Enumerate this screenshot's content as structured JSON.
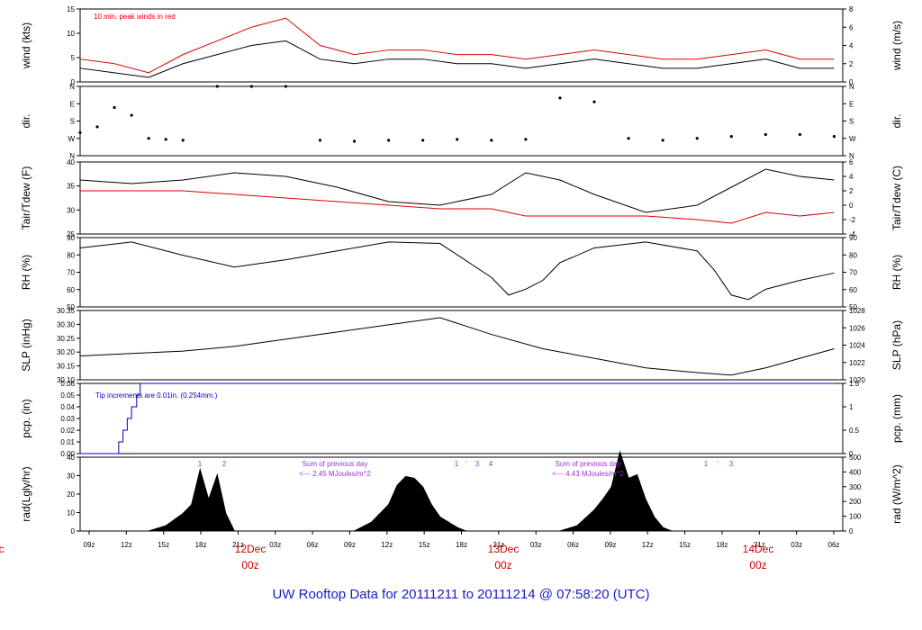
{
  "title": "UW Rooftop Data for 20111211  to  20111214 @ 07:58:20  (UTC)",
  "colors": {
    "series": "#000000",
    "accent": "#dd0000",
    "precip": "#0000cc",
    "annotation": "#9933cc",
    "title": "#1a1acc"
  },
  "x_ticks": [
    "09z",
    "12z",
    "15z",
    "18z",
    "21z",
    "03z",
    "06z",
    "09z",
    "12z",
    "15z",
    "18z",
    "21z",
    "03z",
    "06z",
    "09z",
    "12z",
    "15z",
    "18z",
    "21z",
    "03z",
    "06z"
  ],
  "day_labels": [
    {
      "date": "Dec",
      "hour": "z"
    },
    {
      "date": "12Dec",
      "hour": "00z"
    },
    {
      "date": "13Dec",
      "hour": "00z"
    },
    {
      "date": "14Dec",
      "hour": "00z"
    }
  ],
  "chart_data": [
    {
      "type": "line",
      "id": "wind",
      "ylabel_left": "wind (kts)",
      "ylabel_right": "wind (m/s)",
      "ylim": [
        0,
        16
      ],
      "yticks_left": [
        "0",
        "5",
        "10",
        "15"
      ],
      "yticks_right": [
        "0",
        "2",
        "4",
        "6",
        "8"
      ],
      "annotation": "10 min. peak winds in red",
      "series": [
        {
          "name": "wind",
          "color": "#000000",
          "x_hours": [
            0,
            4,
            8,
            12,
            16,
            20,
            24,
            28,
            32,
            36,
            40,
            44,
            48,
            52,
            56,
            60,
            64,
            68,
            72,
            76,
            80,
            84,
            88
          ],
          "values": [
            3,
            2,
            1,
            4,
            6,
            8,
            9,
            5,
            4,
            5,
            5,
            4,
            4,
            3,
            4,
            5,
            4,
            3,
            3,
            4,
            5,
            3,
            3
          ]
        },
        {
          "name": "10 min. peak winds",
          "color": "#dd0000",
          "x_hours": [
            0,
            4,
            8,
            12,
            16,
            20,
            24,
            28,
            32,
            36,
            40,
            44,
            48,
            52,
            56,
            60,
            64,
            68,
            72,
            76,
            80,
            84,
            88
          ],
          "values": [
            5,
            4,
            2,
            6,
            9,
            12,
            14,
            8,
            6,
            7,
            7,
            6,
            6,
            5,
            6,
            7,
            6,
            5,
            5,
            6,
            7,
            5,
            5
          ]
        }
      ]
    },
    {
      "type": "scatter",
      "id": "dir",
      "ylabel_left": "dir.",
      "ylabel_right": "dir.",
      "yticks": [
        "N",
        "W",
        "S",
        "E",
        "N"
      ],
      "series": [
        {
          "name": "dir",
          "color": "#000000",
          "x_hours": [
            0,
            2,
            4,
            6,
            8,
            10,
            12,
            16,
            20,
            24,
            28,
            32,
            36,
            40,
            44,
            48,
            52,
            56,
            60,
            64,
            68,
            72,
            76,
            80,
            84,
            88
          ],
          "values_deg": [
            120,
            150,
            250,
            210,
            90,
            85,
            80,
            360,
            360,
            360,
            80,
            75,
            80,
            80,
            85,
            80,
            85,
            300,
            280,
            90,
            80,
            90,
            100,
            110,
            110,
            100
          ]
        }
      ]
    },
    {
      "type": "line",
      "id": "temp",
      "ylabel_left": "Tair/Tdew (F)",
      "ylabel_right": "Tair/Tdew (C)",
      "ylim": [
        25,
        45
      ],
      "yticks_left": [
        "25",
        "30",
        "35",
        "40"
      ],
      "yticks_right": [
        "-4",
        "-2",
        "0",
        "2",
        "4",
        "6"
      ],
      "series": [
        {
          "name": "Tair",
          "color": "#000000",
          "x_hours": [
            0,
            6,
            12,
            18,
            24,
            30,
            36,
            42,
            48,
            52,
            56,
            60,
            66,
            72,
            76,
            80,
            84,
            88
          ],
          "values": [
            40,
            39,
            40,
            42,
            41,
            38,
            34,
            33,
            36,
            42,
            40,
            36,
            31,
            33,
            38,
            43,
            41,
            40
          ]
        },
        {
          "name": "Tdew",
          "color": "#dd0000",
          "x_hours": [
            0,
            6,
            12,
            18,
            24,
            30,
            36,
            42,
            48,
            52,
            56,
            60,
            66,
            72,
            76,
            80,
            84,
            88
          ],
          "values": [
            37,
            37,
            37,
            36,
            35,
            34,
            33,
            32,
            32,
            30,
            30,
            30,
            30,
            29,
            28,
            31,
            30,
            31
          ]
        }
      ]
    },
    {
      "type": "line",
      "id": "rh",
      "ylabel_left": "RH (%)",
      "ylabel_right": "RH (%)",
      "ylim": [
        50,
        97
      ],
      "yticks": [
        "50",
        "60",
        "70",
        "80",
        "90"
      ],
      "series": [
        {
          "name": "RH",
          "color": "#000000",
          "x_hours": [
            0,
            6,
            12,
            18,
            24,
            30,
            36,
            42,
            48,
            50,
            52,
            54,
            56,
            60,
            66,
            72,
            74,
            76,
            78,
            80,
            84,
            88
          ],
          "values": [
            90,
            94,
            85,
            77,
            82,
            88,
            94,
            93,
            70,
            58,
            62,
            68,
            80,
            90,
            94,
            88,
            75,
            58,
            55,
            62,
            68,
            73
          ]
        }
      ]
    },
    {
      "type": "line",
      "id": "slp",
      "ylabel_left": "SLP (inHg)",
      "ylabel_right": "SLP (hPa)",
      "ylim": [
        30.07,
        30.36
      ],
      "yticks_left": [
        "30.10",
        "30.15",
        "30.20",
        "30.25",
        "30.30",
        "30.35"
      ],
      "yticks_right": [
        "1020",
        "1022",
        "1024",
        "1026",
        "1028"
      ],
      "series": [
        {
          "name": "SLP",
          "color": "#000000",
          "x_hours": [
            0,
            6,
            12,
            18,
            24,
            30,
            36,
            42,
            48,
            54,
            60,
            66,
            72,
            76,
            80,
            84,
            88
          ],
          "values": [
            30.17,
            30.18,
            30.19,
            30.21,
            30.24,
            30.27,
            30.3,
            30.33,
            30.26,
            30.2,
            30.16,
            30.12,
            30.1,
            30.09,
            30.12,
            30.16,
            30.2
          ]
        }
      ]
    },
    {
      "type": "line",
      "id": "pcp",
      "ylabel_left": "pcp. (in)",
      "ylabel_right": "pcp. (mm)",
      "ylim": [
        0,
        0.06
      ],
      "yticks_left": [
        "0.00",
        "0.01",
        "0.02",
        "0.03",
        "0.04",
        "0.05",
        "0.06"
      ],
      "yticks_right": [
        "0",
        "0.5",
        "1",
        "1.5"
      ],
      "annotation": "Tip increments are 0.01in. (0.254mm.)",
      "series": [
        {
          "name": "pcp",
          "color": "#0000cc",
          "x_hours": [
            0,
            4.5,
            4.5,
            5,
            5,
            5.5,
            5.5,
            6,
            6,
            6.6,
            6.6,
            7,
            7,
            88
          ],
          "values": [
            0,
            0,
            0.01,
            0.01,
            0.02,
            0.02,
            0.03,
            0.03,
            0.04,
            0.04,
            0.05,
            0.05,
            0.06,
            0.06
          ]
        }
      ]
    },
    {
      "type": "area",
      "id": "rad",
      "ylabel_left": "rad(Lgly/hr)",
      "ylabel_right": "rad (W/m^2)",
      "ylim": [
        0,
        42
      ],
      "yticks_left": [
        "0",
        "10",
        "20",
        "30",
        "40"
      ],
      "yticks_right": [
        "0",
        "100",
        "200",
        "300",
        "400",
        "500"
      ],
      "annotations": [
        "Sum of previous day",
        "<--- 2.45 MJoules/m^2",
        "Sum of previous day",
        "<--- 4.43 MJoules/m^2"
      ],
      "peak_markers": [
        "1",
        "2",
        "1",
        "'",
        "3",
        "4",
        "1",
        "'",
        "3"
      ],
      "series": [
        {
          "name": "rad",
          "color": "#000000",
          "x_hours": [
            8,
            10,
            12,
            13,
            14,
            15,
            16,
            17,
            18,
            32,
            34,
            36,
            37,
            38,
            39,
            40,
            41,
            42,
            44,
            45,
            56,
            58,
            60,
            61,
            62,
            63,
            64,
            65,
            66,
            67,
            68,
            69
          ],
          "values": [
            0,
            3,
            10,
            15,
            35,
            18,
            32,
            10,
            0,
            0,
            5,
            15,
            26,
            31,
            30,
            25,
            15,
            8,
            2,
            0,
            0,
            3,
            12,
            18,
            25,
            45,
            30,
            32,
            18,
            8,
            2,
            0
          ]
        }
      ]
    }
  ]
}
